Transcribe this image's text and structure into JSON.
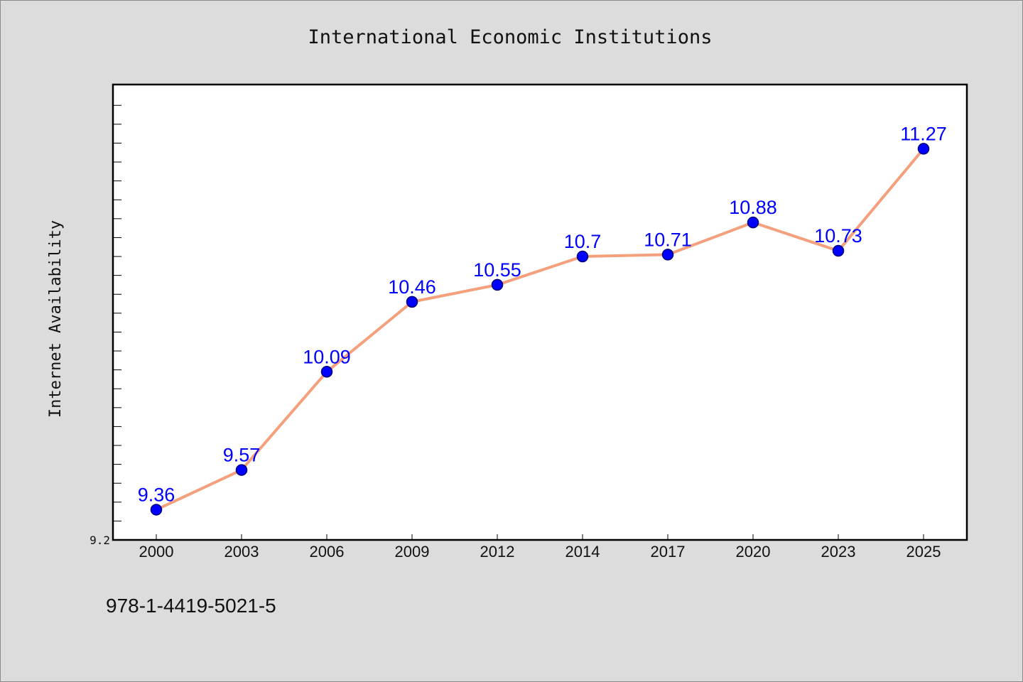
{
  "chart_data": {
    "type": "line",
    "title": "International Economic Institutions",
    "ylabel": "Internet Availability",
    "xlabel": "",
    "categories": [
      "2000",
      "2003",
      "2006",
      "2009",
      "2012",
      "2014",
      "2017",
      "2020",
      "2023",
      "2025"
    ],
    "series": [
      {
        "values": [
          9.36,
          9.57,
          10.09,
          10.46,
          10.55,
          10.7,
          10.71,
          10.88,
          10.73,
          11.27
        ],
        "data_labels": [
          "9.36",
          "9.57",
          "10.09",
          "10.46",
          "10.55",
          "10.7",
          "10.71",
          "10.88",
          "10.73",
          "11.27"
        ]
      }
    ],
    "ylim": [
      9.2,
      11.61
    ],
    "y_tick_labels": [
      "9.2"
    ],
    "grid": false,
    "legend": "none",
    "colors": {
      "line": "#f4a07c",
      "marker": "#0000ff",
      "marker_edge": "#00007a",
      "data_label": "#0000ff"
    }
  },
  "footer": {
    "isbn": "978-1-4419-5021-5"
  }
}
